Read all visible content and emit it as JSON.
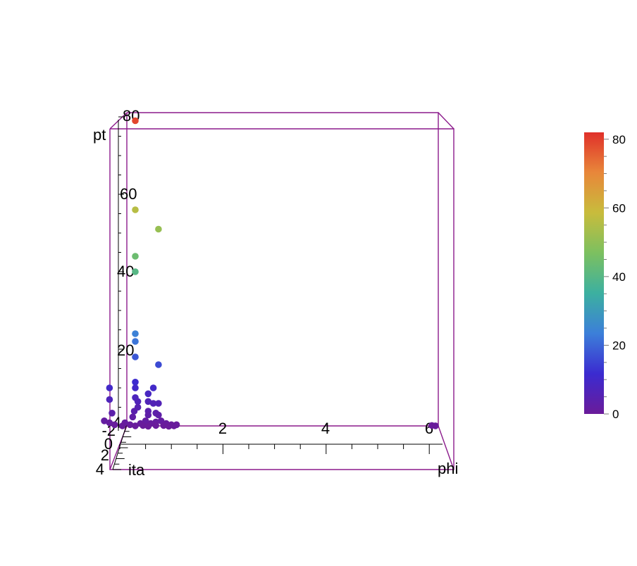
{
  "chart_data": {
    "type": "scatter",
    "projection": "3d",
    "axes": {
      "x": {
        "label": "phi",
        "ticks": [
          "2",
          "4",
          "6"
        ],
        "range": [
          0,
          6.3
        ]
      },
      "y": {
        "label": "ita",
        "ticks": [
          "-4",
          "-2",
          "0",
          "2",
          "4"
        ],
        "range": [
          -4,
          4
        ]
      },
      "z": {
        "label": "pt",
        "ticks": [
          "20",
          "40",
          "60",
          "80"
        ],
        "range": [
          0,
          80
        ]
      }
    },
    "colorbar": {
      "range": [
        0,
        82
      ],
      "ticks": [
        "0",
        "20",
        "40",
        "60",
        "80"
      ],
      "colors": [
        "#6a1b9a",
        "#3b2bd0",
        "#3c7fd9",
        "#3cb0a0",
        "#7cc060",
        "#c8bc3c",
        "#e8873a",
        "#e0302a"
      ]
    },
    "box_color": "#8b1a8b",
    "grid": false,
    "points": [
      {
        "phi": 0.3,
        "pt": 79
      },
      {
        "phi": 0.3,
        "pt": 56
      },
      {
        "phi": 0.75,
        "pt": 51
      },
      {
        "phi": 0.3,
        "pt": 44
      },
      {
        "phi": 0.3,
        "pt": 40
      },
      {
        "phi": 0.3,
        "pt": 24
      },
      {
        "phi": 0.3,
        "pt": 22
      },
      {
        "phi": 0.3,
        "pt": 18
      },
      {
        "phi": 0.75,
        "pt": 16
      },
      {
        "phi": 0.3,
        "pt": 11.5
      },
      {
        "phi": 0.3,
        "pt": 10
      },
      {
        "phi": -0.2,
        "pt": 10
      },
      {
        "phi": 0.65,
        "pt": 10
      },
      {
        "phi": 0.55,
        "pt": 8.5
      },
      {
        "phi": 0.3,
        "pt": 7.5
      },
      {
        "phi": -0.2,
        "pt": 7
      },
      {
        "phi": 0.35,
        "pt": 6.5
      },
      {
        "phi": 0.55,
        "pt": 6.5
      },
      {
        "phi": 0.65,
        "pt": 6
      },
      {
        "phi": 0.75,
        "pt": 6
      },
      {
        "phi": 0.35,
        "pt": 5
      },
      {
        "phi": 0.28,
        "pt": 4
      },
      {
        "phi": 0.55,
        "pt": 4
      },
      {
        "phi": -0.15,
        "pt": 3.5
      },
      {
        "phi": 0.7,
        "pt": 3.5
      },
      {
        "phi": 0.55,
        "pt": 3
      },
      {
        "phi": 0.75,
        "pt": 3
      },
      {
        "phi": 0.25,
        "pt": 2.5
      },
      {
        "phi": -0.3,
        "pt": 1.5
      },
      {
        "phi": -0.2,
        "pt": 1
      },
      {
        "phi": 0.5,
        "pt": 1.5
      },
      {
        "phi": 0.7,
        "pt": 1.2
      },
      {
        "phi": 0.8,
        "pt": 1.5
      },
      {
        "phi": 0.1,
        "pt": 1
      },
      {
        "phi": 0.4,
        "pt": 0.8
      },
      {
        "phi": 0.6,
        "pt": 0.8
      },
      {
        "phi": 0.9,
        "pt": 0.8
      },
      {
        "phi": 1.0,
        "pt": 0.5
      },
      {
        "phi": 1.1,
        "pt": 0.5
      },
      {
        "phi": -0.1,
        "pt": 0.5
      },
      {
        "phi": 0.2,
        "pt": 0.5
      },
      {
        "phi": 0.45,
        "pt": 0.3
      },
      {
        "phi": 0.7,
        "pt": 0.3
      },
      {
        "phi": 0.85,
        "pt": 0.3
      },
      {
        "phi": 0.05,
        "pt": 0.2
      },
      {
        "phi": 0.3,
        "pt": 0.2
      },
      {
        "phi": 0.55,
        "pt": 0.1
      },
      {
        "phi": 0.95,
        "pt": 0.1
      },
      {
        "phi": 1.05,
        "pt": 0.2
      },
      {
        "phi": 6.05,
        "pt": 0.3
      },
      {
        "phi": 6.12,
        "pt": 0.2
      }
    ]
  }
}
